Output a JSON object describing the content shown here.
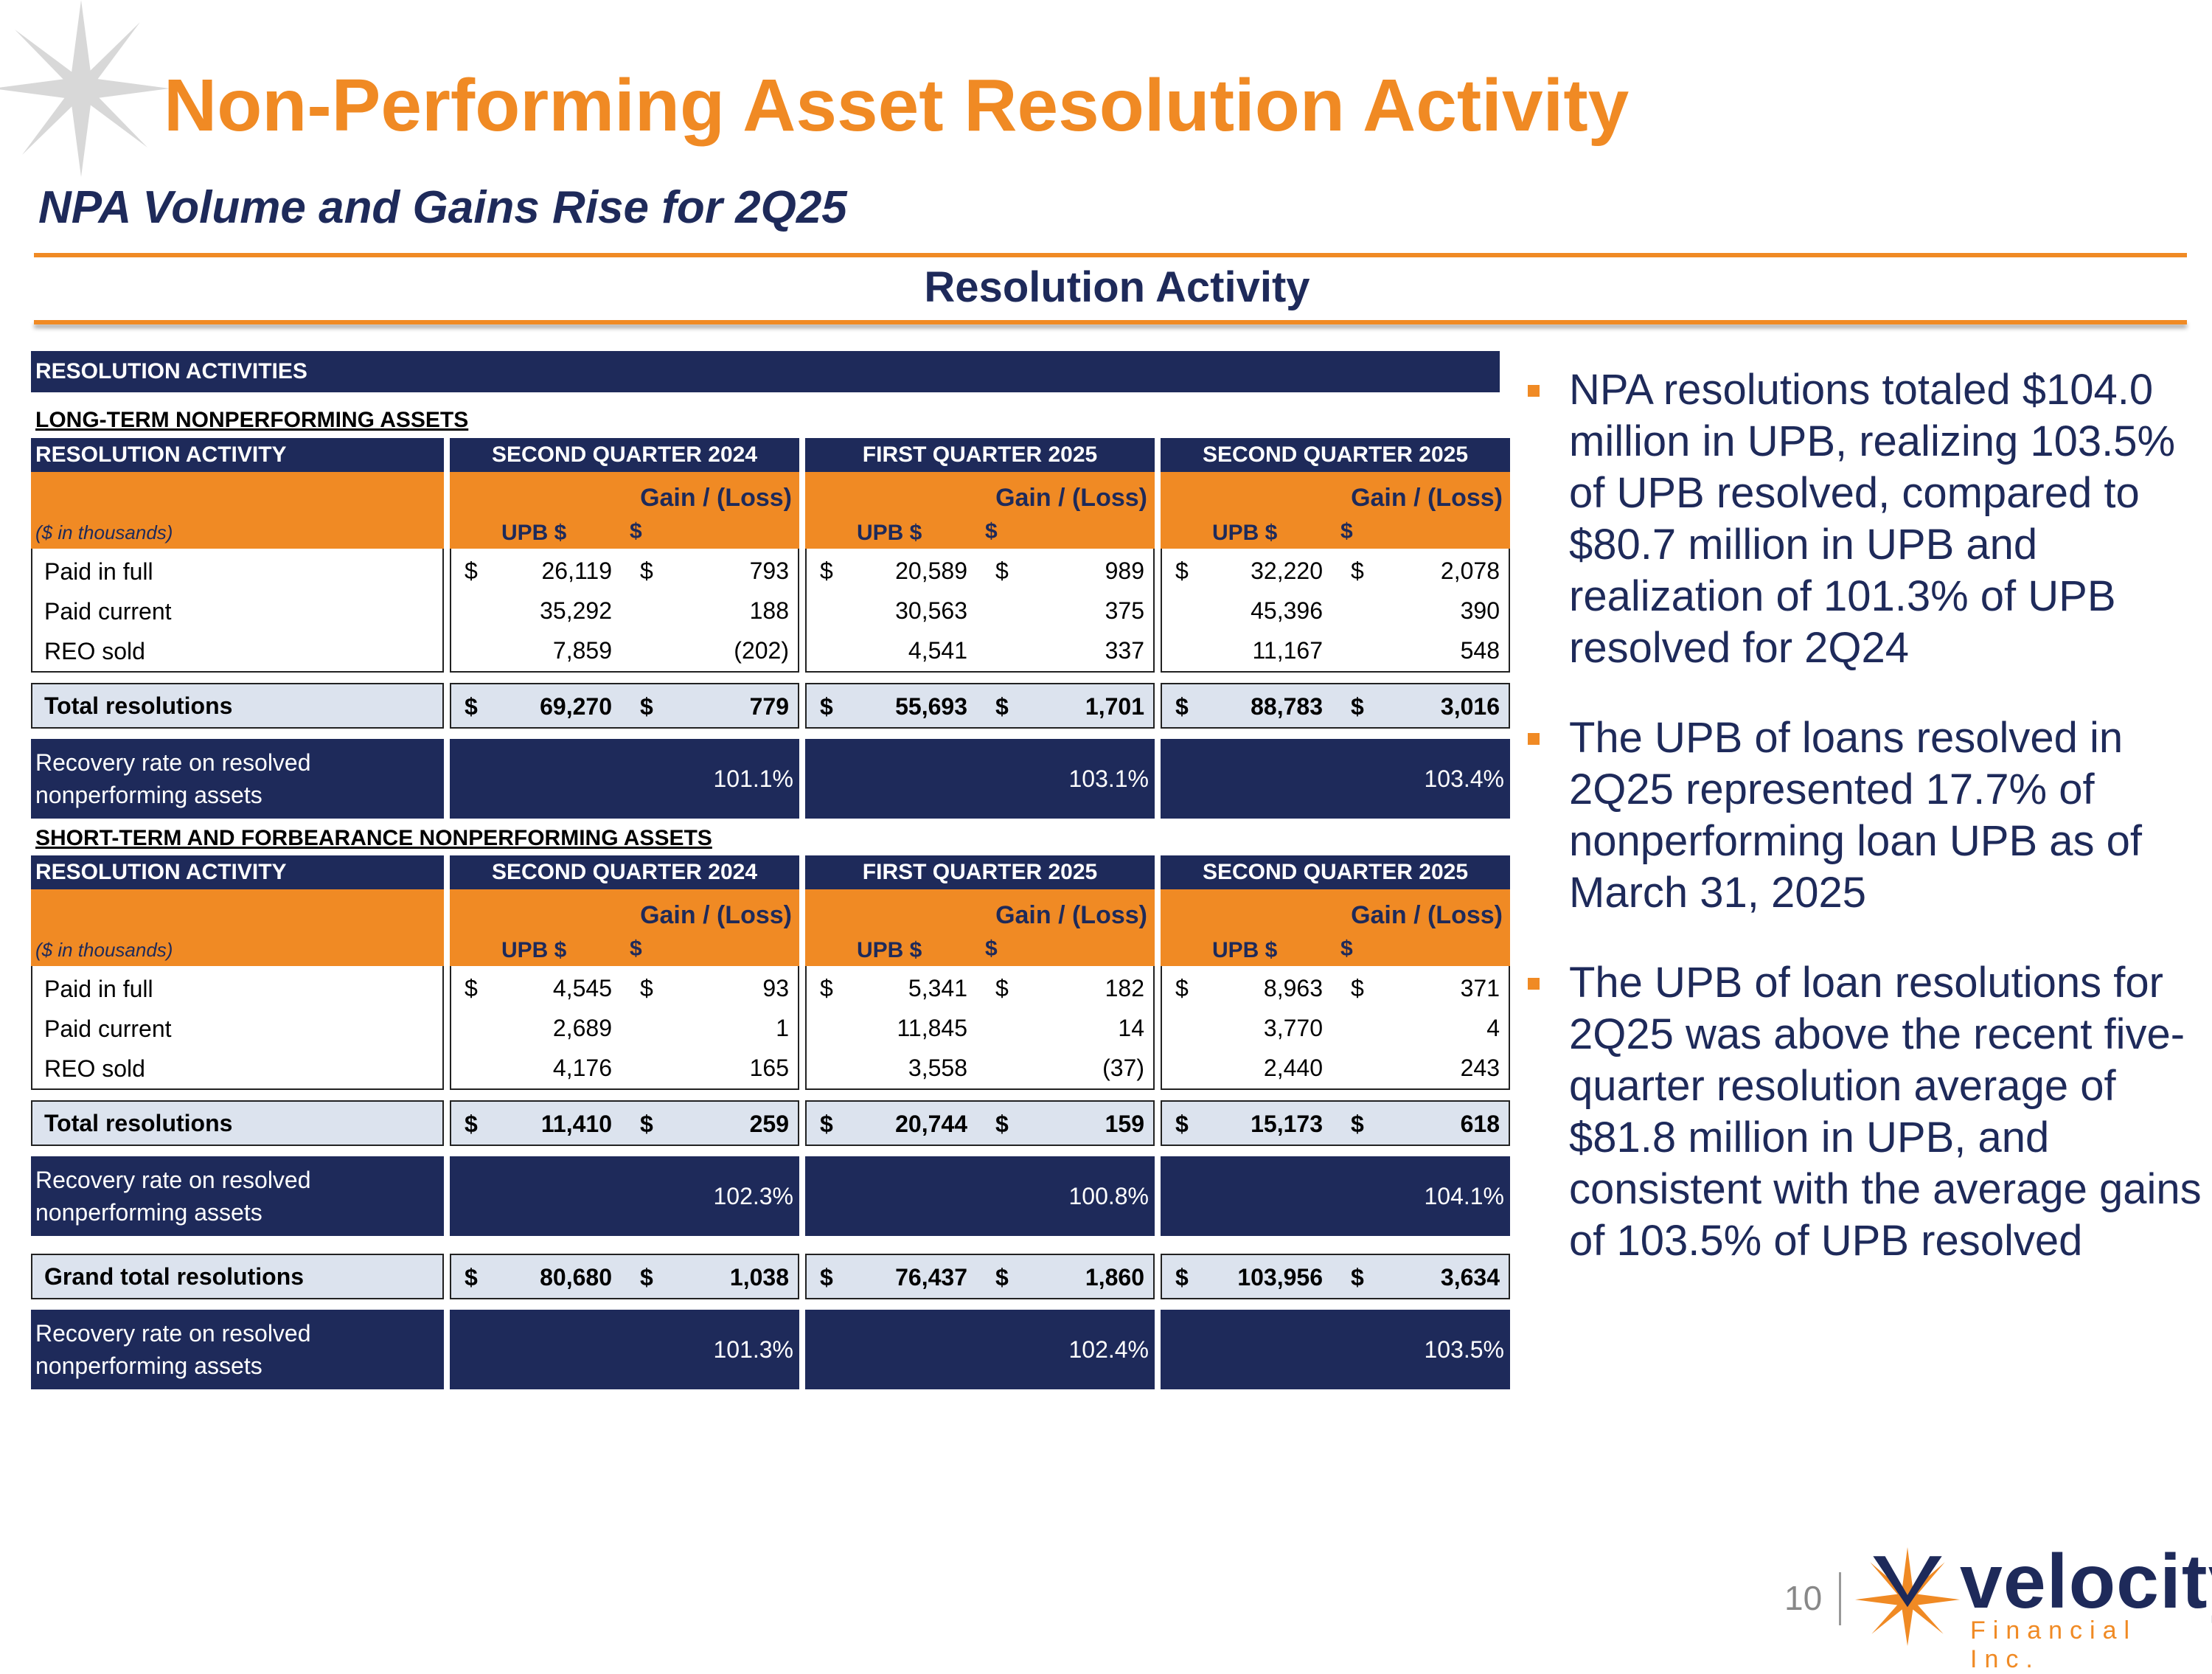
{
  "header": {
    "title": "Non-Performing Asset Resolution Activity",
    "subtitle": "NPA Volume and Gains Rise for 2Q25",
    "section_heading": "Resolution Activity"
  },
  "table": {
    "main_header": "RESOLUTION ACTIVITIES",
    "column_label": "RESOLUTION ACTIVITY",
    "units_label": "($ in thousands)",
    "quarters": [
      "SECOND QUARTER 2024",
      "FIRST QUARTER 2025",
      "SECOND QUARTER 2025"
    ],
    "sub_headers": {
      "upb": "UPB $",
      "gain_line1": "Gain / (Loss)",
      "gain_line2": "$"
    },
    "dollar": "$",
    "recovery_label": "Recovery rate on resolved nonperforming assets",
    "long_term": {
      "title": "LONG-TERM NONPERFORMING ASSETS",
      "rows": [
        {
          "label": "Paid in full",
          "values": [
            [
              "26,119",
              "793"
            ],
            [
              "20,589",
              "989"
            ],
            [
              "32,220",
              "2,078"
            ]
          ]
        },
        {
          "label": "Paid current",
          "values": [
            [
              "35,292",
              "188"
            ],
            [
              "30,563",
              "375"
            ],
            [
              "45,396",
              "390"
            ]
          ]
        },
        {
          "label": "REO sold",
          "values": [
            [
              "7,859",
              "(202)"
            ],
            [
              "4,541",
              "337"
            ],
            [
              "11,167",
              "548"
            ]
          ]
        }
      ],
      "total": {
        "label": "Total resolutions",
        "values": [
          [
            "69,270",
            "779"
          ],
          [
            "55,693",
            "1,701"
          ],
          [
            "88,783",
            "3,016"
          ]
        ]
      },
      "recovery": [
        "101.1%",
        "103.1%",
        "103.4%"
      ]
    },
    "short_term": {
      "title": "SHORT-TERM AND FORBEARANCE NONPERFORMING ASSETS",
      "rows": [
        {
          "label": "Paid in full",
          "values": [
            [
              "4,545",
              "93"
            ],
            [
              "5,341",
              "182"
            ],
            [
              "8,963",
              "371"
            ]
          ]
        },
        {
          "label": "Paid current",
          "values": [
            [
              "2,689",
              "1"
            ],
            [
              "11,845",
              "14"
            ],
            [
              "3,770",
              "4"
            ]
          ]
        },
        {
          "label": "REO sold",
          "values": [
            [
              "4,176",
              "165"
            ],
            [
              "3,558",
              "(37)"
            ],
            [
              "2,440",
              "243"
            ]
          ]
        }
      ],
      "total": {
        "label": "Total resolutions",
        "values": [
          [
            "11,410",
            "259"
          ],
          [
            "20,744",
            "159"
          ],
          [
            "15,173",
            "618"
          ]
        ]
      },
      "recovery": [
        "102.3%",
        "100.8%",
        "104.1%"
      ]
    },
    "grand_total": {
      "label": "Grand total resolutions",
      "values": [
        [
          "80,680",
          "1,038"
        ],
        [
          "76,437",
          "1,860"
        ],
        [
          "103,956",
          "3,634"
        ]
      ]
    },
    "grand_recovery": [
      "101.3%",
      "102.4%",
      "103.5%"
    ]
  },
  "bullets": [
    "NPA resolutions totaled $104.0 million in UPB, realizing 103.5% of UPB resolved, compared to $80.7 million in UPB and realization of 101.3% of UPB resolved for 2Q24",
    "The UPB of loans resolved in 2Q25 represented 17.7% of nonperforming loan UPB as of March 31, 2025",
    "The UPB of loan resolutions for 2Q25 was above the recent five-quarter resolution average of $81.8 million in UPB, and consistent with the average gains of 103.5% of UPB resolved"
  ],
  "footer": {
    "page_number": "10",
    "logo_name": "velocity",
    "logo_sub": "Financial Inc."
  },
  "colors": {
    "orange": "#F08A24",
    "navy": "#1E2A5A",
    "light_blue": "#DCE3EE"
  }
}
